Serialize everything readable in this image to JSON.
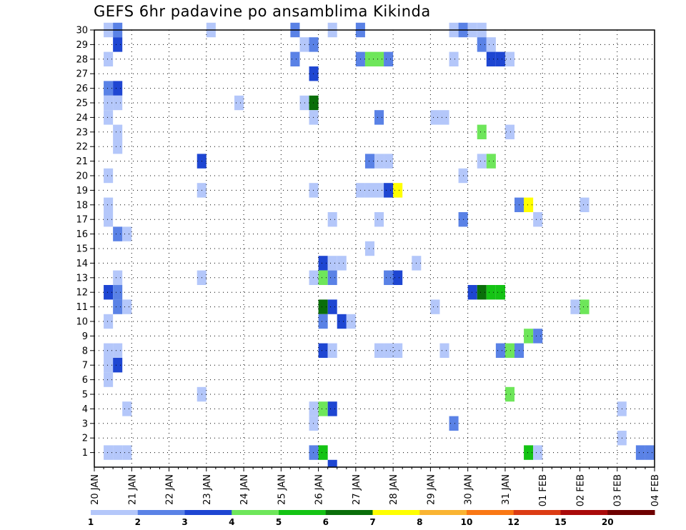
{
  "chart_data": {
    "type": "heatmap",
    "title": "GEFS 6hr padavine po ansamblima Kikinda",
    "xlabel": "",
    "ylabel": "",
    "x_ticks": [
      "20 JAN",
      "21 JAN",
      "22 JAN",
      "23 JAN",
      "24 JAN",
      "25 JAN",
      "26 JAN",
      "27 JAN",
      "28 JAN",
      "29 JAN",
      "30 JAN",
      "31 JAN",
      "01 FEB",
      "02 FEB",
      "03 FEB",
      "04 FEB"
    ],
    "y_ticks": [
      1,
      2,
      3,
      4,
      5,
      6,
      7,
      8,
      9,
      10,
      11,
      12,
      13,
      14,
      15,
      16,
      17,
      18,
      19,
      20,
      21,
      22,
      23,
      24,
      25,
      26,
      27,
      28,
      29,
      30
    ],
    "x_range_days": [
      0,
      15
    ],
    "y_range_members": [
      0,
      30
    ],
    "time_step_hours": 6,
    "grid": true,
    "legend": {
      "placement": "bottom",
      "labels": [
        "1",
        "2",
        "3",
        "4",
        "5",
        "6",
        "7",
        "8",
        "10",
        "12",
        "15",
        "20"
      ],
      "colors": [
        "#b4c7fa",
        "#5a82e6",
        "#1e46d2",
        "#6ee65a",
        "#14c314",
        "#0a6e0a",
        "#ffff00",
        "#fab432",
        "#fa7814",
        "#dc3c14",
        "#aa0a0a",
        "#6e0000"
      ]
    },
    "cells_note": "cells: [member, 6h step from 20 JAN 00z, color class index]",
    "cells": [
      [
        30,
        1,
        0
      ],
      [
        30,
        2,
        1
      ],
      [
        30,
        12,
        0
      ],
      [
        30,
        21,
        1
      ],
      [
        30,
        25,
        0
      ],
      [
        30,
        28,
        1
      ],
      [
        30,
        38,
        0
      ],
      [
        30,
        39,
        1
      ],
      [
        30,
        40,
        0
      ],
      [
        30,
        41,
        0
      ],
      [
        29,
        2,
        2
      ],
      [
        29,
        22,
        0
      ],
      [
        29,
        23,
        1
      ],
      [
        29,
        41,
        1
      ],
      [
        29,
        42,
        0
      ],
      [
        28,
        1,
        0
      ],
      [
        28,
        21,
        1
      ],
      [
        28,
        28,
        1
      ],
      [
        28,
        29,
        3
      ],
      [
        28,
        30,
        3
      ],
      [
        28,
        31,
        1
      ],
      [
        28,
        38,
        0
      ],
      [
        28,
        42,
        2
      ],
      [
        28,
        43,
        2
      ],
      [
        28,
        44,
        0
      ],
      [
        27,
        23,
        2
      ],
      [
        27,
        60,
        4
      ],
      [
        26,
        1,
        1
      ],
      [
        26,
        2,
        2
      ],
      [
        25,
        1,
        0
      ],
      [
        25,
        2,
        0
      ],
      [
        25,
        15,
        0
      ],
      [
        25,
        22,
        0
      ],
      [
        25,
        23,
        5
      ],
      [
        25,
        60,
        0
      ],
      [
        24,
        1,
        0
      ],
      [
        24,
        23,
        0
      ],
      [
        24,
        30,
        1
      ],
      [
        24,
        36,
        0
      ],
      [
        24,
        37,
        0
      ],
      [
        23,
        2,
        0
      ],
      [
        23,
        41,
        3
      ],
      [
        23,
        44,
        0
      ],
      [
        22,
        2,
        0
      ],
      [
        21,
        11,
        2
      ],
      [
        21,
        29,
        1
      ],
      [
        21,
        30,
        0
      ],
      [
        21,
        31,
        0
      ],
      [
        21,
        41,
        0
      ],
      [
        21,
        42,
        3
      ],
      [
        20,
        1,
        0
      ],
      [
        20,
        39,
        0
      ],
      [
        19,
        11,
        0
      ],
      [
        19,
        23,
        0
      ],
      [
        19,
        28,
        0
      ],
      [
        19,
        29,
        0
      ],
      [
        19,
        30,
        0
      ],
      [
        19,
        31,
        2
      ],
      [
        19,
        32,
        6
      ],
      [
        18,
        1,
        0
      ],
      [
        18,
        45,
        1
      ],
      [
        18,
        46,
        6
      ],
      [
        18,
        52,
        0
      ],
      [
        17,
        1,
        0
      ],
      [
        17,
        25,
        0
      ],
      [
        17,
        30,
        0
      ],
      [
        17,
        39,
        1
      ],
      [
        17,
        47,
        0
      ],
      [
        16,
        2,
        1
      ],
      [
        16,
        3,
        0
      ],
      [
        15,
        29,
        0
      ],
      [
        14,
        24,
        2
      ],
      [
        14,
        25,
        0
      ],
      [
        14,
        26,
        0
      ],
      [
        14,
        34,
        0
      ],
      [
        13,
        2,
        0
      ],
      [
        13,
        11,
        0
      ],
      [
        13,
        23,
        0
      ],
      [
        13,
        24,
        3
      ],
      [
        13,
        25,
        1
      ],
      [
        13,
        31,
        1
      ],
      [
        13,
        32,
        2
      ],
      [
        12,
        1,
        2
      ],
      [
        12,
        2,
        1
      ],
      [
        12,
        40,
        2
      ],
      [
        12,
        41,
        5
      ],
      [
        12,
        42,
        4
      ],
      [
        12,
        43,
        4
      ],
      [
        11,
        2,
        1
      ],
      [
        11,
        3,
        0
      ],
      [
        11,
        24,
        5
      ],
      [
        11,
        25,
        2
      ],
      [
        11,
        36,
        0
      ],
      [
        11,
        51,
        0
      ],
      [
        11,
        52,
        3
      ],
      [
        10,
        1,
        0
      ],
      [
        10,
        24,
        1
      ],
      [
        10,
        26,
        2
      ],
      [
        10,
        27,
        0
      ],
      [
        9,
        46,
        3
      ],
      [
        9,
        47,
        1
      ],
      [
        8,
        1,
        0
      ],
      [
        8,
        2,
        0
      ],
      [
        8,
        24,
        2
      ],
      [
        8,
        25,
        0
      ],
      [
        8,
        30,
        0
      ],
      [
        8,
        31,
        0
      ],
      [
        8,
        32,
        0
      ],
      [
        8,
        37,
        0
      ],
      [
        8,
        43,
        1
      ],
      [
        8,
        44,
        3
      ],
      [
        8,
        45,
        1
      ],
      [
        7,
        1,
        0
      ],
      [
        7,
        2,
        2
      ],
      [
        6,
        1,
        0
      ],
      [
        5,
        11,
        0
      ],
      [
        5,
        44,
        3
      ],
      [
        4,
        3,
        0
      ],
      [
        4,
        23,
        0
      ],
      [
        4,
        24,
        3
      ],
      [
        4,
        25,
        2
      ],
      [
        4,
        56,
        0
      ],
      [
        3,
        23,
        0
      ],
      [
        3,
        38,
        1
      ],
      [
        2,
        56,
        0
      ],
      [
        1,
        1,
        0
      ],
      [
        1,
        2,
        0
      ],
      [
        1,
        3,
        0
      ],
      [
        1,
        23,
        1
      ],
      [
        1,
        24,
        4
      ],
      [
        1,
        46,
        4
      ],
      [
        1,
        47,
        0
      ],
      [
        1,
        58,
        1
      ],
      [
        1,
        59,
        1
      ],
      [
        1,
        60,
        0
      ],
      [
        0,
        25,
        2
      ]
    ]
  }
}
